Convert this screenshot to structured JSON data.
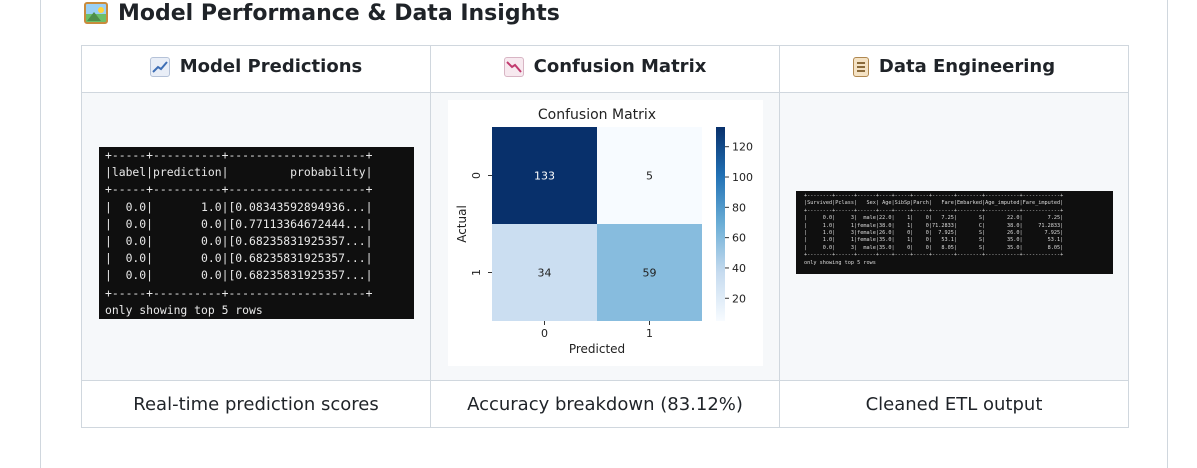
{
  "section": {
    "title": "Model Performance & Data Insights",
    "icon": "framed-picture-icon"
  },
  "columns": [
    {
      "title": "Model Predictions",
      "icon": "chart-increasing-icon",
      "caption": "Real-time prediction scores"
    },
    {
      "title": "Confusion Matrix",
      "icon": "chart-decreasing-icon",
      "caption": "Accuracy breakdown (83.12%)"
    },
    {
      "title": "Data Engineering",
      "icon": "clipboard-icon",
      "caption": "Cleaned ETL output"
    }
  ],
  "predictions_output": {
    "lines": [
      "+-----+----------+--------------------+",
      "|label|prediction|         probability|",
      "+-----+----------+--------------------+",
      "|  0.0|       1.0|[0.08343592894936...|",
      "|  0.0|       0.0|[0.77113364672444...|",
      "|  0.0|       0.0|[0.68235831925357...|",
      "|  0.0|       0.0|[0.68235831925357...|",
      "|  0.0|       0.0|[0.68235831925357...|",
      "+-----+----------+--------------------+",
      "only showing top 5 rows"
    ]
  },
  "chart_data": {
    "type": "heatmap",
    "title": "Confusion Matrix",
    "xlabel": "Predicted",
    "ylabel": "Actual",
    "x_categories": [
      "0",
      "1"
    ],
    "y_categories": [
      "0",
      "1"
    ],
    "values": [
      [
        133,
        5
      ],
      [
        34,
        59
      ]
    ],
    "colorscale": "Blues",
    "colorbar_range": [
      5,
      133
    ],
    "colorbar_ticks": [
      20,
      40,
      60,
      80,
      100,
      120
    ]
  },
  "etl_output": {
    "lines": [
      "+--------+------+------+----+-----+-----+-------+--------+-----------+------------+",
      "|Survived|Pclass|   Sex| Age|SibSp|Parch|   Fare|Embarked|Age_imputed|Fare_imputed|",
      "+--------+------+------+----+-----+-----+-------+--------+-----------+------------+",
      "|     0.0|     3|  male|22.0|    1|    0|   7.25|       S|       22.0|        7.25|",
      "|     1.0|     1|female|38.0|    1|    0|71.2833|       C|       38.0|     71.2833|",
      "|     1.0|     3|female|26.0|    0|    0|  7.925|       S|       26.0|       7.925|",
      "|     1.0|     1|female|35.0|    1|    0|   53.1|       S|       35.0|        53.1|",
      "|     0.0|     3|  male|35.0|    0|    0|   8.05|       S|       35.0|        8.05|",
      "+--------+------+------+----+-----+-----+-------+--------+-----------+------------+",
      "only showing top 5 rows"
    ]
  }
}
